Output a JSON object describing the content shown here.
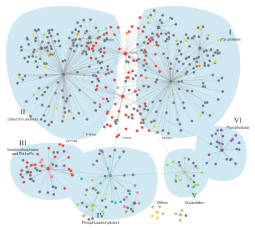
{
  "groups": [
    {
      "id": "g1",
      "roman": "I",
      "name": "pTyr proteins"
    },
    {
      "id": "g2",
      "roman": "II",
      "name": "pSer/pThr proteins"
    },
    {
      "id": "g3",
      "roman": "III",
      "name": "Inositol phosphates\nand PtdInsPs"
    },
    {
      "id": "g4",
      "roman": "IV",
      "name": "Phosphocarbohydrates"
    },
    {
      "id": "g5",
      "roman": "V",
      "name": "Nucleotides"
    },
    {
      "id": "g6",
      "roman": "VI",
      "name": "Phospholipids"
    },
    {
      "id": "g7",
      "roman": "",
      "name": "Others"
    }
  ],
  "hub_labels": [
    "PTPN6",
    "PTPRC",
    "INPP5E",
    "PTEN",
    "EPM2A",
    "ACP1"
  ],
  "colors": {
    "cluster_fill": "#cfe8f1",
    "edge": "#9a9a9a",
    "node_default": "#707a80",
    "node_red": "#e8423a",
    "node_purple": "#7d5ab6",
    "node_green": "#9ccf6a",
    "node_yellow": "#e4d23c",
    "node_orange": "#ee9a3b",
    "node_pink": "#ec7aa3",
    "node_blue": "#4a86c8",
    "node_teal": "#44b3b3"
  }
}
